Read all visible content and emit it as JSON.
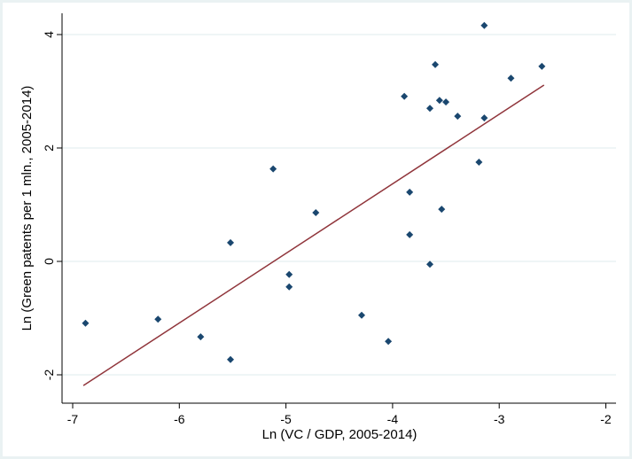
{
  "chart_data": {
    "type": "scatter",
    "title": "",
    "xlabel": "Ln (VC / GDP, 2005-2014)",
    "ylabel": "Ln (Green patents per 1 mln., 2005-2014)",
    "xlim": [
      -7.1,
      -1.9
    ],
    "ylim": [
      -2.3,
      4.25
    ],
    "xticks": [
      -7,
      -6,
      -5,
      -4,
      -3,
      -2
    ],
    "yticks": [
      -2,
      0,
      2,
      4
    ],
    "grid": true,
    "colors": {
      "points": "#1a476f",
      "fit": "#90353b",
      "grid": "#eaf2f3"
    },
    "points": [
      [
        -6.88,
        -1.09
      ],
      [
        -6.2,
        -1.02
      ],
      [
        -5.8,
        -1.33
      ],
      [
        -5.52,
        0.33
      ],
      [
        -5.52,
        -1.73
      ],
      [
        -5.12,
        1.63
      ],
      [
        -4.97,
        -0.23
      ],
      [
        -4.97,
        -0.45
      ],
      [
        -4.72,
        0.86
      ],
      [
        -4.29,
        -0.95
      ],
      [
        -4.04,
        -1.41
      ],
      [
        -3.89,
        2.91
      ],
      [
        -3.84,
        1.22
      ],
      [
        -3.84,
        0.47
      ],
      [
        -3.65,
        2.7
      ],
      [
        -3.65,
        -0.05
      ],
      [
        -3.6,
        3.47
      ],
      [
        -3.56,
        2.84
      ],
      [
        -3.5,
        2.81
      ],
      [
        -3.54,
        0.92
      ],
      [
        -3.39,
        2.56
      ],
      [
        -3.19,
        1.75
      ],
      [
        -3.14,
        4.16
      ],
      [
        -3.14,
        2.53
      ],
      [
        -2.89,
        3.23
      ],
      [
        -2.6,
        3.44
      ]
    ],
    "fit_line": {
      "x": [
        -6.9,
        -2.58
      ],
      "y": [
        -2.19,
        3.11
      ]
    }
  }
}
